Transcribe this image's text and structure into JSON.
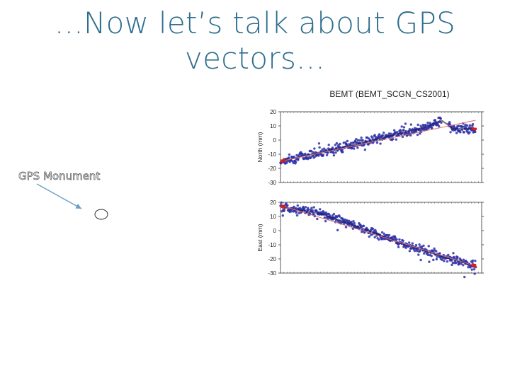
{
  "slide": {
    "title_line1": "...Now let’s talk about GPS",
    "title_line2": "vectors...",
    "title_color": "#2e6e8e"
  },
  "annotation": {
    "label": "GPS Monument",
    "icon": "monument-circle-icon",
    "arrow_color": "#6a9ec6"
  },
  "chart_data": {
    "type": "scatter",
    "title": "BEMT (BEMT_SCGN_CS2001)",
    "point_color": "#2b2fa8",
    "fit_color": "#e07070",
    "outlier_color": "#d02020",
    "panels": [
      {
        "name": "north",
        "ylabel": "North (mm)",
        "ylim": [
          -30,
          20
        ],
        "yticks": [
          20,
          10,
          0,
          -10,
          -20,
          -30
        ],
        "trend": [
          [
            0,
            -15
          ],
          [
            0.37,
            -3
          ],
          [
            0.72,
            9
          ],
          [
            0.8,
            14
          ],
          [
            0.86,
            8
          ],
          [
            0.97,
            8
          ]
        ],
        "fit_line": [
          [
            0,
            -15
          ],
          [
            0.97,
            14
          ]
        ]
      },
      {
        "name": "east",
        "ylabel": "East (mm)",
        "ylim": [
          -30,
          20
        ],
        "yticks": [
          20,
          10,
          0,
          -10,
          -20,
          -30
        ],
        "trend": [
          [
            0,
            17
          ],
          [
            0.2,
            12
          ],
          [
            0.4,
            2
          ],
          [
            0.6,
            -9
          ],
          [
            0.8,
            -18
          ],
          [
            0.97,
            -25
          ]
        ],
        "fit_line": [
          [
            0,
            18
          ],
          [
            0.97,
            -25
          ]
        ]
      }
    ]
  }
}
